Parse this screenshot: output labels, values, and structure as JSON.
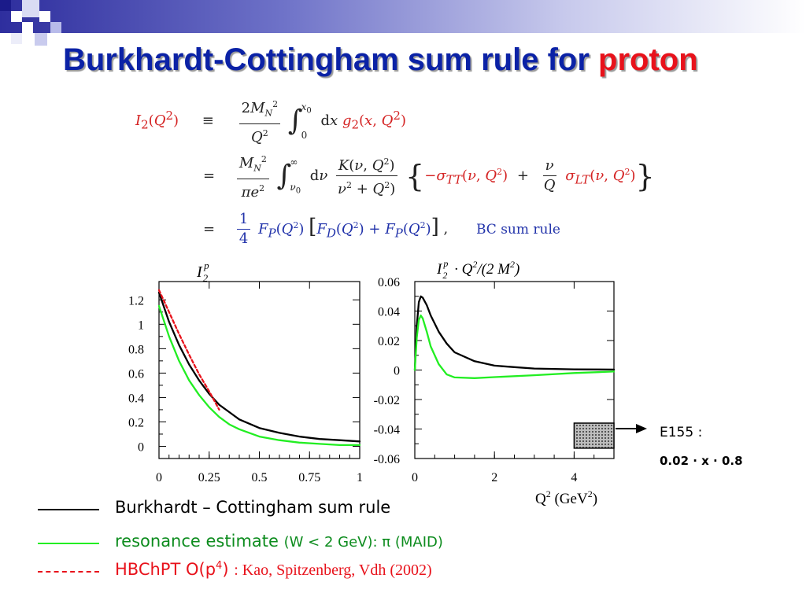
{
  "slide": {
    "title_main": "Burkhardt-Cottingham sum rule for ",
    "title_highlight": "proton"
  },
  "equations": {
    "line1_lhs": "I2(Q²)",
    "line1_rel": "≡",
    "line2_rel": "=",
    "line3_rel": "=",
    "bc_label": "BC sum rule"
  },
  "legend": {
    "items": [
      {
        "label": "Burkhardt – Cottingham sum rule",
        "color": "#000000",
        "style": "solid"
      },
      {
        "label": "resonance estimate",
        "detail": "(W < 2 GeV): π  (MAID)",
        "color": "#22ee22",
        "style": "solid"
      },
      {
        "label": "HBChPT  O(p",
        "sup": "4",
        "label_end": ")",
        "detail": ": Kao, Spitzenberg, Vdh (2002)",
        "color": "#e8121b",
        "style": "dashed"
      }
    ]
  },
  "annotation": {
    "label": "E155 :",
    "range": "0.02 · x · 0.8"
  },
  "chart_data": [
    {
      "type": "line",
      "title": "I2p",
      "xlabel": "",
      "ylabel": "",
      "xlim": [
        0,
        1
      ],
      "ylim": [
        -0.1,
        1.35
      ],
      "x_ticks": [
        0,
        0.25,
        0.5,
        0.75,
        1
      ],
      "x_tick_labels": [
        "0",
        "0.25",
        "0.5",
        "0.75",
        "1"
      ],
      "y_ticks": [
        0,
        0.2,
        0.4,
        0.6,
        0.8,
        1.0,
        1.2
      ],
      "y_tick_labels": [
        "0",
        "0.2",
        "0.4",
        "0.6",
        "0.8",
        "1",
        "1.2"
      ],
      "series": [
        {
          "color": "#000000",
          "style": "solid",
          "x": [
            0,
            0.05,
            0.1,
            0.15,
            0.2,
            0.25,
            0.3,
            0.35,
            0.4,
            0.5,
            0.6,
            0.7,
            0.8,
            0.9,
            1.0
          ],
          "y": [
            1.26,
            1.02,
            0.83,
            0.67,
            0.54,
            0.43,
            0.34,
            0.28,
            0.22,
            0.15,
            0.11,
            0.08,
            0.06,
            0.05,
            0.04
          ]
        },
        {
          "color": "#22ee22",
          "style": "solid",
          "x": [
            0,
            0.05,
            0.1,
            0.15,
            0.2,
            0.25,
            0.3,
            0.35,
            0.4,
            0.5,
            0.6,
            0.7,
            0.8,
            0.9,
            1.0
          ],
          "y": [
            1.15,
            0.9,
            0.7,
            0.54,
            0.42,
            0.32,
            0.24,
            0.18,
            0.14,
            0.08,
            0.05,
            0.03,
            0.02,
            0.01,
            0.01
          ]
        },
        {
          "color": "#e8121b",
          "style": "dashed",
          "x": [
            0,
            0.05,
            0.1,
            0.15,
            0.2,
            0.25,
            0.3
          ],
          "y": [
            1.28,
            1.1,
            0.92,
            0.75,
            0.59,
            0.45,
            0.3
          ]
        }
      ]
    },
    {
      "type": "line",
      "title": "I2p · Q2/(2 M2)",
      "xlabel": "Q² (GeV²)",
      "ylabel": "",
      "xlim": [
        0,
        5
      ],
      "ylim": [
        -0.06,
        0.06
      ],
      "x_ticks": [
        0,
        2,
        4
      ],
      "x_tick_labels": [
        "0",
        "2",
        "4"
      ],
      "y_ticks": [
        -0.06,
        -0.04,
        -0.02,
        0,
        0.02,
        0.04,
        0.06
      ],
      "y_tick_labels": [
        "-0.06",
        "-0.04",
        "-0.02",
        "0",
        "0.02",
        "0.04",
        "0.06"
      ],
      "series": [
        {
          "color": "#000000",
          "style": "solid",
          "x": [
            0,
            0.05,
            0.1,
            0.15,
            0.2,
            0.3,
            0.4,
            0.6,
            0.8,
            1.0,
            1.5,
            2.0,
            2.5,
            3.0,
            4.0,
            5.0
          ],
          "y": [
            0.0,
            0.03,
            0.046,
            0.05,
            0.049,
            0.044,
            0.037,
            0.026,
            0.018,
            0.012,
            0.006,
            0.003,
            0.002,
            0.001,
            0.0005,
            0.0003
          ]
        },
        {
          "color": "#22ee22",
          "style": "solid",
          "x": [
            0,
            0.05,
            0.1,
            0.15,
            0.2,
            0.3,
            0.4,
            0.6,
            0.8,
            1.0,
            1.5,
            2.0,
            3.0,
            4.0,
            5.0
          ],
          "y": [
            0.0,
            0.022,
            0.034,
            0.037,
            0.035,
            0.026,
            0.016,
            0.004,
            -0.003,
            -0.005,
            -0.0055,
            -0.0048,
            -0.0035,
            -0.002,
            -0.001
          ]
        }
      ],
      "shaded_region": {
        "x": [
          4.0,
          5.0
        ],
        "y": [
          -0.053,
          -0.036
        ]
      }
    }
  ]
}
